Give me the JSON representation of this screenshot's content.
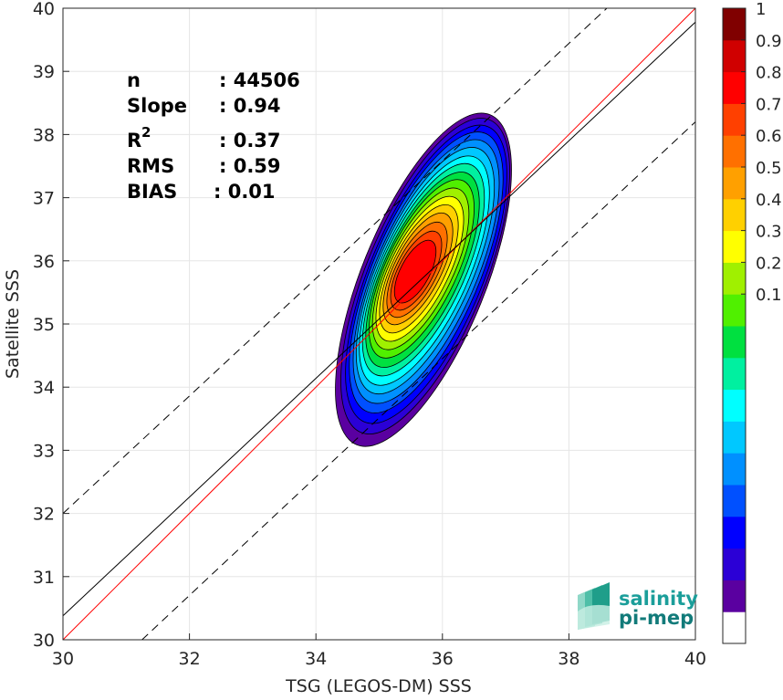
{
  "chart_data": {
    "type": "heatmap",
    "title": "",
    "xlabel": "TSG (LEGOS-DM) SSS",
    "ylabel": "Satellite SSS",
    "xlim": [
      30,
      40
    ],
    "ylim": [
      30,
      40
    ],
    "x_ticks": [
      30,
      32,
      34,
      36,
      38,
      40
    ],
    "y_ticks": [
      30,
      31,
      32,
      33,
      34,
      35,
      36,
      37,
      38,
      39,
      40
    ],
    "grid": true,
    "stats": [
      {
        "label": "n",
        "sup": "",
        "value": ": 44506"
      },
      {
        "label": "Slope",
        "sup": "",
        "value": ": 0.94"
      },
      {
        "label": "R",
        "sup": "2",
        "value": ": 0.37"
      },
      {
        "label": "RMS",
        "sup": "",
        "value": ": 0.59"
      },
      {
        "label": "BIAS",
        "sup": "",
        "value": ": 0.01"
      }
    ],
    "lines": [
      {
        "kind": "identity",
        "color": "#ff0000",
        "style": "solid",
        "points": [
          [
            30,
            30
          ],
          [
            40,
            40
          ]
        ]
      },
      {
        "kind": "regression",
        "color": "#000000",
        "style": "solid",
        "points": [
          [
            30,
            30.38
          ],
          [
            40,
            39.78
          ]
        ]
      },
      {
        "kind": "upper-bound",
        "color": "#000000",
        "style": "dashed",
        "points": [
          [
            30,
            32.0
          ],
          [
            38.6,
            40.0
          ]
        ]
      },
      {
        "kind": "lower-bound",
        "color": "#000000",
        "style": "dashed",
        "points": [
          [
            31.25,
            30.0
          ],
          [
            40,
            38.2
          ]
        ]
      }
    ],
    "density_center": [
      35.7,
      35.7
    ],
    "density_levels": [
      0.1,
      0.2,
      0.3,
      0.4,
      0.5,
      0.6,
      0.7,
      0.8,
      0.9
    ],
    "colorbar": {
      "ticks": [
        0.1,
        0.2,
        0.3,
        0.4,
        0.5,
        0.6,
        0.7,
        0.8,
        0.9,
        1
      ],
      "colors": [
        "#ffffff",
        "#5a00a0",
        "#2b00d6",
        "#0000ff",
        "#0050ff",
        "#0090ff",
        "#00c8ff",
        "#00ffff",
        "#00f0a0",
        "#00e040",
        "#50f000",
        "#a0f000",
        "#ffff00",
        "#ffd000",
        "#ffa000",
        "#ff7000",
        "#ff4000",
        "#ff0000",
        "#d00000",
        "#800000"
      ]
    }
  },
  "logo": {
    "line1": "salinity",
    "line2": "pi-mep"
  }
}
